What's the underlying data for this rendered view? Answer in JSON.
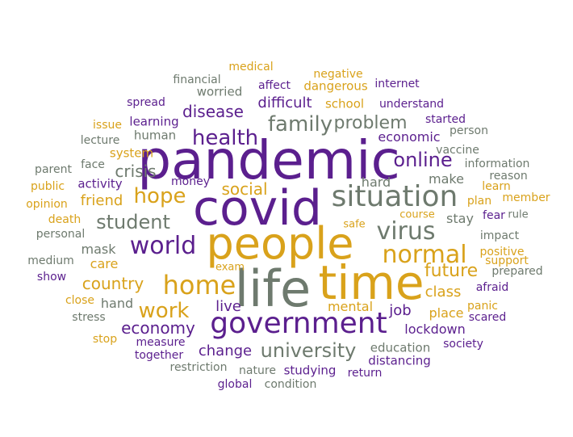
{
  "colors": {
    "purple": "#5b1f8e",
    "gold": "#d9a21b",
    "gray": "#6e7a6e"
  },
  "words": [
    {
      "text": "pandemic",
      "color": "purple"
    },
    {
      "text": "covid",
      "color": "purple"
    },
    {
      "text": "people",
      "color": "gold"
    },
    {
      "text": "life",
      "color": "gray"
    },
    {
      "text": "time",
      "color": "gold"
    },
    {
      "text": "situation",
      "color": "gray"
    },
    {
      "text": "government",
      "color": "purple"
    },
    {
      "text": "home",
      "color": "gold"
    },
    {
      "text": "health",
      "color": "purple"
    },
    {
      "text": "family",
      "color": "gray"
    },
    {
      "text": "problem",
      "color": "gray"
    },
    {
      "text": "world",
      "color": "purple"
    },
    {
      "text": "virus",
      "color": "gray"
    },
    {
      "text": "normal",
      "color": "gold"
    },
    {
      "text": "online",
      "color": "purple"
    },
    {
      "text": "hope",
      "color": "gold"
    },
    {
      "text": "student",
      "color": "gray"
    },
    {
      "text": "work",
      "color": "gold"
    },
    {
      "text": "university",
      "color": "gray"
    },
    {
      "text": "country",
      "color": "gold"
    },
    {
      "text": "economy",
      "color": "purple"
    },
    {
      "text": "future",
      "color": "gold"
    },
    {
      "text": "disease",
      "color": "purple"
    },
    {
      "text": "social",
      "color": "gold"
    },
    {
      "text": "difficult",
      "color": "purple"
    },
    {
      "text": "crisis",
      "color": "gray"
    },
    {
      "text": "change",
      "color": "purple"
    },
    {
      "text": "class",
      "color": "gold"
    },
    {
      "text": "job",
      "color": "purple"
    },
    {
      "text": "lockdown",
      "color": "purple"
    },
    {
      "text": "friend",
      "color": "gold"
    },
    {
      "text": "live",
      "color": "purple"
    },
    {
      "text": "make",
      "color": "gray"
    },
    {
      "text": "stay",
      "color": "gray"
    },
    {
      "text": "hard",
      "color": "gray"
    },
    {
      "text": "economic",
      "color": "purple"
    },
    {
      "text": "mental",
      "color": "gold"
    },
    {
      "text": "place",
      "color": "gold"
    },
    {
      "text": "mask",
      "color": "gray"
    },
    {
      "text": "care",
      "color": "gold"
    },
    {
      "text": "hand",
      "color": "gray"
    },
    {
      "text": "studying",
      "color": "purple"
    },
    {
      "text": "education",
      "color": "gray"
    },
    {
      "text": "distancing",
      "color": "purple"
    },
    {
      "text": "human",
      "color": "gray"
    },
    {
      "text": "learning",
      "color": "purple"
    },
    {
      "text": "system",
      "color": "gold"
    },
    {
      "text": "activity",
      "color": "purple"
    },
    {
      "text": "worried",
      "color": "gray"
    },
    {
      "text": "school",
      "color": "gold"
    },
    {
      "text": "understand",
      "color": "purple"
    },
    {
      "text": "dangerous",
      "color": "gold"
    },
    {
      "text": "affect",
      "color": "purple"
    },
    {
      "text": "negative",
      "color": "gold"
    },
    {
      "text": "internet",
      "color": "purple"
    },
    {
      "text": "medical",
      "color": "gold"
    },
    {
      "text": "financial",
      "color": "gray"
    },
    {
      "text": "spread",
      "color": "purple"
    },
    {
      "text": "issue",
      "color": "gold"
    },
    {
      "text": "lecture",
      "color": "gray"
    },
    {
      "text": "face",
      "color": "gray"
    },
    {
      "text": "parent",
      "color": "gray"
    },
    {
      "text": "public",
      "color": "gold"
    },
    {
      "text": "opinion",
      "color": "gold"
    },
    {
      "text": "death",
      "color": "gold"
    },
    {
      "text": "personal",
      "color": "gray"
    },
    {
      "text": "medium",
      "color": "gray"
    },
    {
      "text": "show",
      "color": "purple"
    },
    {
      "text": "close",
      "color": "gold"
    },
    {
      "text": "stress",
      "color": "gray"
    },
    {
      "text": "stop",
      "color": "gold"
    },
    {
      "text": "measure",
      "color": "purple"
    },
    {
      "text": "together",
      "color": "purple"
    },
    {
      "text": "restriction",
      "color": "gray"
    },
    {
      "text": "nature",
      "color": "gray"
    },
    {
      "text": "global",
      "color": "purple"
    },
    {
      "text": "condition",
      "color": "gray"
    },
    {
      "text": "return",
      "color": "purple"
    },
    {
      "text": "society",
      "color": "purple"
    },
    {
      "text": "started",
      "color": "purple"
    },
    {
      "text": "person",
      "color": "gray"
    },
    {
      "text": "vaccine",
      "color": "gray"
    },
    {
      "text": "information",
      "color": "gray"
    },
    {
      "text": "reason",
      "color": "gray"
    },
    {
      "text": "learn",
      "color": "gold"
    },
    {
      "text": "plan",
      "color": "gold"
    },
    {
      "text": "member",
      "color": "gold"
    },
    {
      "text": "fear",
      "color": "purple"
    },
    {
      "text": "rule",
      "color": "gray"
    },
    {
      "text": "course",
      "color": "gold"
    },
    {
      "text": "safe",
      "color": "gold"
    },
    {
      "text": "impact",
      "color": "gray"
    },
    {
      "text": "positive",
      "color": "gold"
    },
    {
      "text": "support",
      "color": "gold"
    },
    {
      "text": "prepared",
      "color": "gray"
    },
    {
      "text": "afraid",
      "color": "purple"
    },
    {
      "text": "panic",
      "color": "gold"
    },
    {
      "text": "scared",
      "color": "purple"
    },
    {
      "text": "money",
      "color": "purple"
    },
    {
      "text": "exam",
      "color": "gold"
    }
  ]
}
